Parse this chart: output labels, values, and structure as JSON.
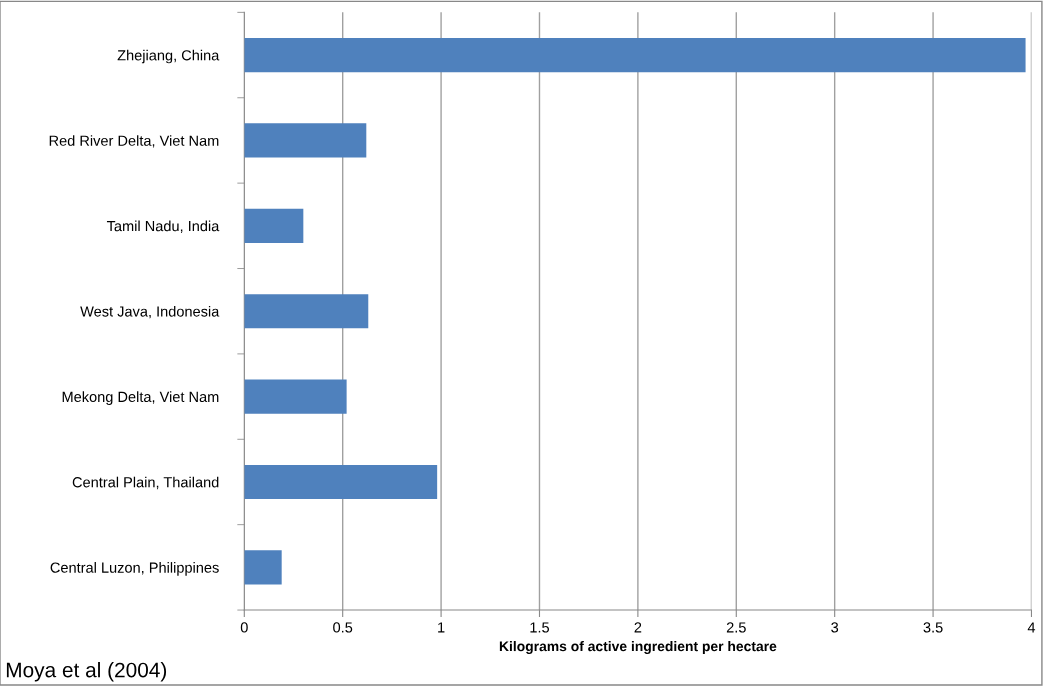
{
  "chart_data": {
    "type": "bar",
    "orientation": "horizontal",
    "categories": [
      "Zhejiang, China",
      "Red River Delta, Viet Nam",
      "Tamil Nadu, India",
      "West Java, Indonesia",
      "Mekong Delta, Viet Nam",
      "Central Plain, Thailand",
      "Central Luzon, Philippines"
    ],
    "values": [
      3.97,
      0.62,
      0.3,
      0.63,
      0.52,
      0.98,
      0.19
    ],
    "color": "#4f81bd",
    "xlabel": "Kilograms of active ingredient per hectare",
    "xlim": [
      0,
      4
    ],
    "xticks": [
      0,
      0.5,
      1,
      1.5,
      2,
      2.5,
      3,
      3.5,
      4
    ],
    "grid": "x",
    "annotations": [
      "Moya et al (2004)"
    ]
  }
}
